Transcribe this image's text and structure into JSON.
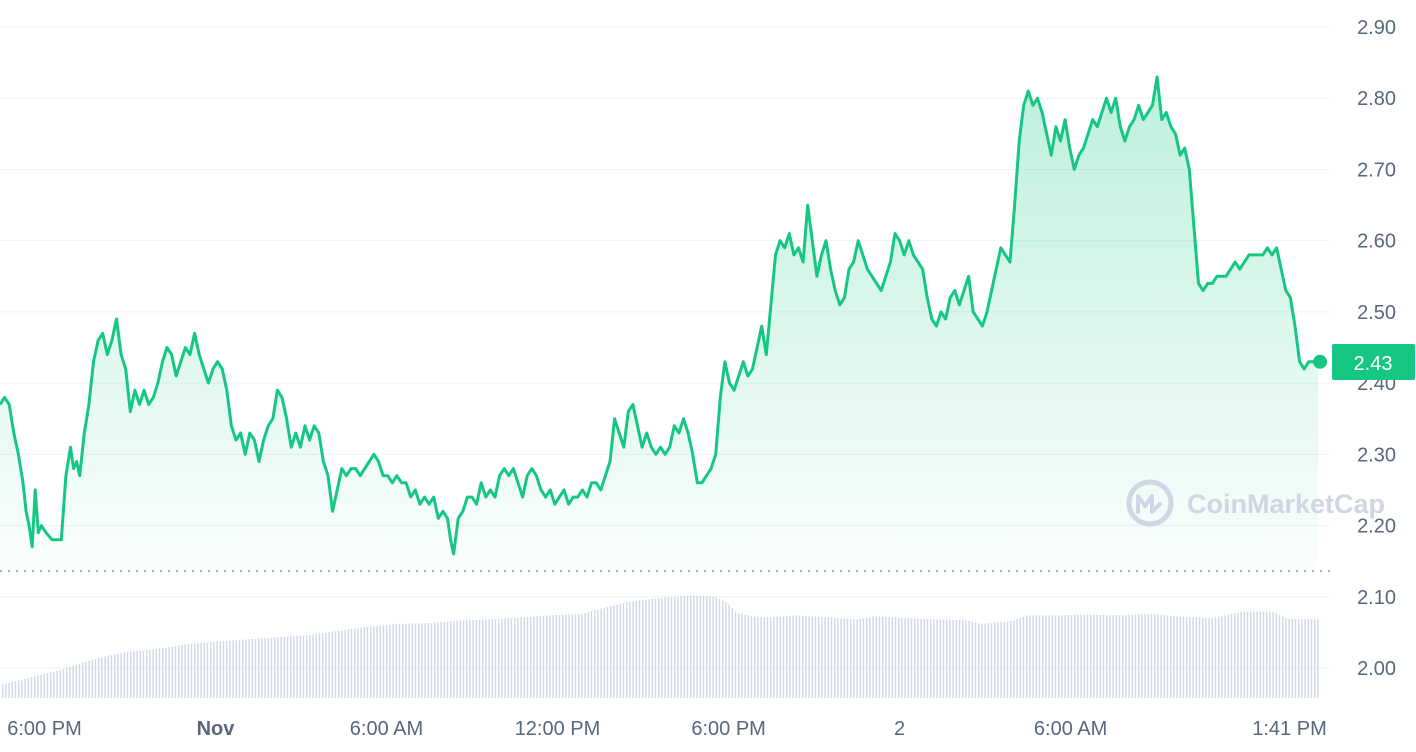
{
  "colors": {
    "line": "#16c784",
    "volume": "#cfd6e4",
    "grid": "#eff2f5",
    "axis_text": "#58667e",
    "watermark": "#cfd6e4",
    "badge": "#16c784"
  },
  "watermark": {
    "text": "CoinMarketCap",
    "icon": "coinmarketcap-logo-icon"
  },
  "chart_data": {
    "type": "area",
    "x_start": "Oct 31, 4:30 PM",
    "x_end": "Nov 2, 1:41 PM",
    "ylim": [
      1.96,
      2.93
    ],
    "yticks": [
      2.0,
      2.1,
      2.2,
      2.3,
      2.4,
      2.5,
      2.6,
      2.7,
      2.8,
      2.9
    ],
    "ytick_labels": [
      "2.00",
      "2.10",
      "2.20",
      "2.30",
      "2.40",
      "2.50",
      "2.60",
      "2.70",
      "2.80",
      "2.90"
    ],
    "xticks": [
      {
        "label": "6:00 PM",
        "bold": false,
        "h": 1.5
      },
      {
        "label": "Nov",
        "bold": true,
        "h": 7.5
      },
      {
        "label": "6:00 AM",
        "bold": false,
        "h": 13.5
      },
      {
        "label": "12:00 PM",
        "bold": false,
        "h": 19.5
      },
      {
        "label": "6:00 PM",
        "bold": false,
        "h": 25.5
      },
      {
        "label": "2",
        "bold": false,
        "h": 31.5
      },
      {
        "label": "6:00 AM",
        "bold": false,
        "h": 37.5
      },
      {
        "label": "1:41 PM",
        "bold": false,
        "h": 45.18
      }
    ],
    "current_price": {
      "label": "2.43",
      "value": 2.43
    },
    "baseline": 2.136,
    "grid": true,
    "price_series": [
      [
        0.0,
        2.37
      ],
      [
        0.15,
        2.38
      ],
      [
        0.3,
        2.37
      ],
      [
        0.45,
        2.33
      ],
      [
        0.6,
        2.3
      ],
      [
        0.75,
        2.26
      ],
      [
        0.85,
        2.22
      ],
      [
        0.95,
        2.2
      ],
      [
        1.05,
        2.17
      ],
      [
        1.15,
        2.25
      ],
      [
        1.25,
        2.19
      ],
      [
        1.35,
        2.2
      ],
      [
        1.5,
        2.19
      ],
      [
        1.7,
        2.18
      ],
      [
        1.85,
        2.18
      ],
      [
        2.0,
        2.18
      ],
      [
        2.15,
        2.27
      ],
      [
        2.3,
        2.31
      ],
      [
        2.4,
        2.28
      ],
      [
        2.5,
        2.29
      ],
      [
        2.6,
        2.27
      ],
      [
        2.75,
        2.33
      ],
      [
        2.9,
        2.37
      ],
      [
        3.05,
        2.43
      ],
      [
        3.2,
        2.46
      ],
      [
        3.35,
        2.47
      ],
      [
        3.5,
        2.44
      ],
      [
        3.65,
        2.46
      ],
      [
        3.8,
        2.49
      ],
      [
        3.95,
        2.44
      ],
      [
        4.1,
        2.42
      ],
      [
        4.25,
        2.36
      ],
      [
        4.4,
        2.39
      ],
      [
        4.55,
        2.37
      ],
      [
        4.7,
        2.39
      ],
      [
        4.85,
        2.37
      ],
      [
        5.0,
        2.38
      ],
      [
        5.15,
        2.4
      ],
      [
        5.3,
        2.43
      ],
      [
        5.45,
        2.45
      ],
      [
        5.6,
        2.44
      ],
      [
        5.75,
        2.41
      ],
      [
        5.9,
        2.43
      ],
      [
        6.05,
        2.45
      ],
      [
        6.2,
        2.44
      ],
      [
        6.35,
        2.47
      ],
      [
        6.5,
        2.44
      ],
      [
        6.65,
        2.42
      ],
      [
        6.8,
        2.4
      ],
      [
        6.95,
        2.42
      ],
      [
        7.1,
        2.43
      ],
      [
        7.25,
        2.42
      ],
      [
        7.4,
        2.39
      ],
      [
        7.55,
        2.34
      ],
      [
        7.7,
        2.32
      ],
      [
        7.85,
        2.33
      ],
      [
        8.0,
        2.3
      ],
      [
        8.15,
        2.33
      ],
      [
        8.3,
        2.32
      ],
      [
        8.45,
        2.29
      ],
      [
        8.6,
        2.32
      ],
      [
        8.75,
        2.34
      ],
      [
        8.9,
        2.35
      ],
      [
        9.05,
        2.39
      ],
      [
        9.2,
        2.38
      ],
      [
        9.35,
        2.35
      ],
      [
        9.5,
        2.31
      ],
      [
        9.65,
        2.33
      ],
      [
        9.8,
        2.31
      ],
      [
        9.95,
        2.34
      ],
      [
        10.1,
        2.32
      ],
      [
        10.25,
        2.34
      ],
      [
        10.4,
        2.33
      ],
      [
        10.55,
        2.29
      ],
      [
        10.7,
        2.27
      ],
      [
        10.85,
        2.22
      ],
      [
        11.0,
        2.25
      ],
      [
        11.15,
        2.28
      ],
      [
        11.3,
        2.27
      ],
      [
        11.45,
        2.28
      ],
      [
        11.6,
        2.28
      ],
      [
        11.75,
        2.27
      ],
      [
        11.9,
        2.28
      ],
      [
        12.05,
        2.29
      ],
      [
        12.2,
        2.3
      ],
      [
        12.35,
        2.29
      ],
      [
        12.5,
        2.27
      ],
      [
        12.65,
        2.27
      ],
      [
        12.8,
        2.26
      ],
      [
        12.95,
        2.27
      ],
      [
        13.1,
        2.26
      ],
      [
        13.25,
        2.26
      ],
      [
        13.4,
        2.24
      ],
      [
        13.55,
        2.25
      ],
      [
        13.7,
        2.23
      ],
      [
        13.85,
        2.24
      ],
      [
        14.0,
        2.23
      ],
      [
        14.15,
        2.24
      ],
      [
        14.3,
        2.21
      ],
      [
        14.45,
        2.22
      ],
      [
        14.6,
        2.21
      ],
      [
        14.7,
        2.18
      ],
      [
        14.8,
        2.16
      ],
      [
        14.95,
        2.21
      ],
      [
        15.1,
        2.22
      ],
      [
        15.25,
        2.24
      ],
      [
        15.4,
        2.24
      ],
      [
        15.55,
        2.23
      ],
      [
        15.7,
        2.26
      ],
      [
        15.85,
        2.24
      ],
      [
        16.0,
        2.25
      ],
      [
        16.15,
        2.24
      ],
      [
        16.3,
        2.27
      ],
      [
        16.45,
        2.28
      ],
      [
        16.6,
        2.27
      ],
      [
        16.75,
        2.28
      ],
      [
        16.9,
        2.26
      ],
      [
        17.05,
        2.24
      ],
      [
        17.2,
        2.27
      ],
      [
        17.35,
        2.28
      ],
      [
        17.5,
        2.27
      ],
      [
        17.65,
        2.25
      ],
      [
        17.8,
        2.24
      ],
      [
        17.95,
        2.25
      ],
      [
        18.1,
        2.23
      ],
      [
        18.25,
        2.24
      ],
      [
        18.4,
        2.25
      ],
      [
        18.55,
        2.23
      ],
      [
        18.7,
        2.24
      ],
      [
        18.85,
        2.24
      ],
      [
        19.0,
        2.25
      ],
      [
        19.15,
        2.24
      ],
      [
        19.3,
        2.26
      ],
      [
        19.45,
        2.26
      ],
      [
        19.6,
        2.25
      ],
      [
        19.75,
        2.27
      ],
      [
        19.9,
        2.29
      ],
      [
        20.05,
        2.35
      ],
      [
        20.2,
        2.33
      ],
      [
        20.35,
        2.31
      ],
      [
        20.5,
        2.36
      ],
      [
        20.65,
        2.37
      ],
      [
        20.8,
        2.34
      ],
      [
        20.95,
        2.31
      ],
      [
        21.1,
        2.33
      ],
      [
        21.25,
        2.31
      ],
      [
        21.4,
        2.3
      ],
      [
        21.55,
        2.31
      ],
      [
        21.7,
        2.3
      ],
      [
        21.85,
        2.31
      ],
      [
        22.0,
        2.34
      ],
      [
        22.15,
        2.33
      ],
      [
        22.3,
        2.35
      ],
      [
        22.45,
        2.33
      ],
      [
        22.6,
        2.3
      ],
      [
        22.75,
        2.26
      ],
      [
        22.9,
        2.26
      ],
      [
        23.05,
        2.27
      ],
      [
        23.2,
        2.28
      ],
      [
        23.35,
        2.3
      ],
      [
        23.5,
        2.38
      ],
      [
        23.65,
        2.43
      ],
      [
        23.8,
        2.4
      ],
      [
        23.95,
        2.39
      ],
      [
        24.1,
        2.41
      ],
      [
        24.25,
        2.43
      ],
      [
        24.4,
        2.41
      ],
      [
        24.55,
        2.42
      ],
      [
        24.7,
        2.45
      ],
      [
        24.85,
        2.48
      ],
      [
        25.0,
        2.44
      ],
      [
        25.15,
        2.51
      ],
      [
        25.3,
        2.58
      ],
      [
        25.45,
        2.6
      ],
      [
        25.6,
        2.59
      ],
      [
        25.75,
        2.61
      ],
      [
        25.9,
        2.58
      ],
      [
        26.05,
        2.59
      ],
      [
        26.2,
        2.57
      ],
      [
        26.35,
        2.65
      ],
      [
        26.5,
        2.6
      ],
      [
        26.65,
        2.55
      ],
      [
        26.8,
        2.58
      ],
      [
        26.95,
        2.6
      ],
      [
        27.1,
        2.56
      ],
      [
        27.25,
        2.53
      ],
      [
        27.4,
        2.51
      ],
      [
        27.55,
        2.52
      ],
      [
        27.7,
        2.56
      ],
      [
        27.85,
        2.57
      ],
      [
        28.0,
        2.6
      ],
      [
        28.15,
        2.58
      ],
      [
        28.3,
        2.56
      ],
      [
        28.45,
        2.55
      ],
      [
        28.6,
        2.54
      ],
      [
        28.75,
        2.53
      ],
      [
        28.9,
        2.55
      ],
      [
        29.05,
        2.57
      ],
      [
        29.2,
        2.61
      ],
      [
        29.35,
        2.6
      ],
      [
        29.5,
        2.58
      ],
      [
        29.65,
        2.6
      ],
      [
        29.8,
        2.58
      ],
      [
        29.95,
        2.57
      ],
      [
        30.1,
        2.56
      ],
      [
        30.25,
        2.52
      ],
      [
        30.4,
        2.49
      ],
      [
        30.55,
        2.48
      ],
      [
        30.7,
        2.5
      ],
      [
        30.85,
        2.49
      ],
      [
        31.0,
        2.52
      ],
      [
        31.15,
        2.53
      ],
      [
        31.3,
        2.51
      ],
      [
        31.45,
        2.53
      ],
      [
        31.6,
        2.55
      ],
      [
        31.75,
        2.5
      ],
      [
        31.9,
        2.49
      ],
      [
        32.05,
        2.48
      ],
      [
        32.2,
        2.5
      ],
      [
        32.35,
        2.53
      ],
      [
        32.5,
        2.56
      ],
      [
        32.65,
        2.59
      ],
      [
        32.8,
        2.58
      ],
      [
        32.95,
        2.57
      ],
      [
        33.1,
        2.65
      ],
      [
        33.25,
        2.74
      ],
      [
        33.4,
        2.79
      ],
      [
        33.55,
        2.81
      ],
      [
        33.7,
        2.79
      ],
      [
        33.85,
        2.8
      ],
      [
        34.0,
        2.78
      ],
      [
        34.15,
        2.75
      ],
      [
        34.3,
        2.72
      ],
      [
        34.45,
        2.76
      ],
      [
        34.6,
        2.74
      ],
      [
        34.75,
        2.77
      ],
      [
        34.9,
        2.73
      ],
      [
        35.05,
        2.7
      ],
      [
        35.2,
        2.72
      ],
      [
        35.35,
        2.73
      ],
      [
        35.5,
        2.75
      ],
      [
        35.65,
        2.77
      ],
      [
        35.8,
        2.76
      ],
      [
        35.95,
        2.78
      ],
      [
        36.1,
        2.8
      ],
      [
        36.25,
        2.78
      ],
      [
        36.4,
        2.8
      ],
      [
        36.55,
        2.76
      ],
      [
        36.7,
        2.74
      ],
      [
        36.85,
        2.76
      ],
      [
        37.0,
        2.77
      ],
      [
        37.15,
        2.79
      ],
      [
        37.3,
        2.77
      ],
      [
        37.45,
        2.78
      ],
      [
        37.6,
        2.79
      ],
      [
        37.75,
        2.83
      ],
      [
        37.9,
        2.77
      ],
      [
        38.05,
        2.78
      ],
      [
        38.2,
        2.76
      ],
      [
        38.35,
        2.75
      ],
      [
        38.5,
        2.72
      ],
      [
        38.65,
        2.73
      ],
      [
        38.8,
        2.7
      ],
      [
        38.95,
        2.62
      ],
      [
        39.1,
        2.54
      ],
      [
        39.25,
        2.53
      ],
      [
        39.4,
        2.54
      ],
      [
        39.55,
        2.54
      ],
      [
        39.7,
        2.55
      ],
      [
        39.85,
        2.55
      ],
      [
        40.0,
        2.55
      ],
      [
        40.15,
        2.56
      ],
      [
        40.3,
        2.57
      ],
      [
        40.45,
        2.56
      ],
      [
        40.6,
        2.57
      ],
      [
        40.75,
        2.58
      ],
      [
        40.9,
        2.58
      ],
      [
        41.05,
        2.58
      ],
      [
        41.2,
        2.58
      ],
      [
        41.35,
        2.59
      ],
      [
        41.5,
        2.58
      ],
      [
        41.65,
        2.59
      ],
      [
        41.8,
        2.56
      ],
      [
        41.95,
        2.53
      ],
      [
        42.1,
        2.52
      ],
      [
        42.25,
        2.48
      ],
      [
        42.4,
        2.43
      ],
      [
        42.55,
        2.42
      ],
      [
        42.7,
        2.43
      ],
      [
        42.85,
        2.43
      ],
      [
        43.0,
        2.43
      ]
    ],
    "volume_series": [
      [
        0.0,
        1.976
      ],
      [
        1.0,
        1.987
      ],
      [
        2.0,
        1.998
      ],
      [
        3.0,
        2.012
      ],
      [
        4.0,
        2.022
      ],
      [
        5.0,
        2.026
      ],
      [
        6.0,
        2.033
      ],
      [
        7.0,
        2.037
      ],
      [
        8.0,
        2.04
      ],
      [
        9.0,
        2.043
      ],
      [
        10.0,
        2.046
      ],
      [
        11.0,
        2.052
      ],
      [
        12.0,
        2.058
      ],
      [
        13.0,
        2.062
      ],
      [
        14.0,
        2.063
      ],
      [
        15.0,
        2.067
      ],
      [
        16.0,
        2.068
      ],
      [
        17.0,
        2.071
      ],
      [
        18.0,
        2.074
      ],
      [
        19.0,
        2.076
      ],
      [
        19.8,
        2.086
      ],
      [
        20.5,
        2.093
      ],
      [
        21.5,
        2.098
      ],
      [
        22.5,
        2.102
      ],
      [
        23.3,
        2.1
      ],
      [
        23.7,
        2.092
      ],
      [
        24.0,
        2.078
      ],
      [
        24.5,
        2.073
      ],
      [
        25.0,
        2.071
      ],
      [
        26.0,
        2.074
      ],
      [
        27.0,
        2.071
      ],
      [
        28.0,
        2.068
      ],
      [
        28.5,
        2.073
      ],
      [
        29.5,
        2.07
      ],
      [
        30.5,
        2.068
      ],
      [
        31.5,
        2.067
      ],
      [
        32.0,
        2.062
      ],
      [
        32.5,
        2.064
      ],
      [
        33.0,
        2.066
      ],
      [
        33.5,
        2.074
      ],
      [
        34.5,
        2.074
      ],
      [
        35.5,
        2.075
      ],
      [
        36.5,
        2.074
      ],
      [
        37.5,
        2.076
      ],
      [
        38.5,
        2.072
      ],
      [
        39.5,
        2.07
      ],
      [
        40.5,
        2.079
      ],
      [
        41.5,
        2.079
      ],
      [
        42.0,
        2.069
      ],
      [
        43.0,
        2.068
      ]
    ]
  }
}
